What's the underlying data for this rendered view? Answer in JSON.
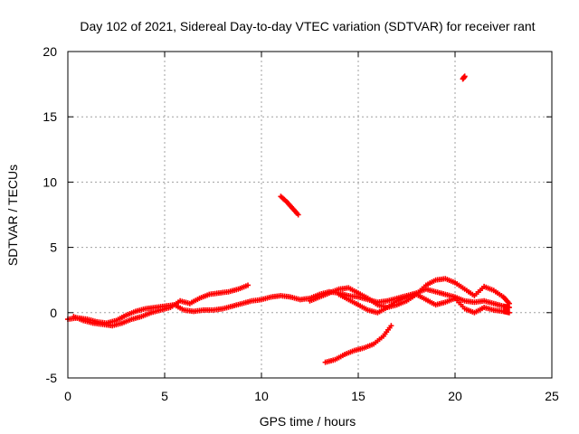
{
  "chart_data": {
    "type": "scatter",
    "title": "Day 102 of 2021, Sidereal Day-to-day VTEC variation (SDTVAR) for receiver rant",
    "xlabel": "GPS time / hours",
    "ylabel": "SDTVAR / TECUs",
    "xlim": [
      0,
      25
    ],
    "ylim": [
      -5,
      20
    ],
    "xticks": [
      0,
      5,
      10,
      15,
      20,
      25
    ],
    "yticks": [
      -5,
      0,
      5,
      10,
      15,
      20
    ],
    "grid": true,
    "marker_color": "#ff0000",
    "series": [
      {
        "name": "track-a",
        "x": [
          0.0,
          0.5,
          1.0,
          1.5,
          2.0,
          2.5,
          3.0,
          3.5,
          4.0,
          4.5,
          5.0,
          5.5,
          6.0,
          6.5,
          7.0,
          7.5,
          8.0,
          8.5,
          9.0,
          9.5,
          10.0,
          10.5,
          11.0,
          11.5,
          12.0,
          12.5,
          13.0,
          13.5,
          14.0,
          14.5,
          15.0,
          15.5,
          16.0,
          16.5,
          17.0,
          17.5,
          18.0,
          18.5,
          19.0,
          19.5,
          20.0,
          20.5,
          21.0,
          21.5,
          22.0,
          22.5,
          22.8
        ],
        "y": [
          -0.5,
          -0.4,
          -0.5,
          -0.7,
          -0.8,
          -0.6,
          -0.2,
          0.1,
          0.3,
          0.4,
          0.5,
          0.6,
          0.2,
          0.1,
          0.2,
          0.2,
          0.3,
          0.5,
          0.7,
          0.9,
          1.0,
          1.2,
          1.3,
          1.2,
          1.0,
          1.1,
          1.4,
          1.6,
          1.5,
          1.3,
          1.2,
          1.0,
          0.8,
          0.9,
          1.1,
          1.3,
          1.5,
          1.8,
          1.6,
          1.4,
          1.2,
          0.9,
          0.8,
          0.9,
          0.7,
          0.5,
          0.4
        ]
      },
      {
        "name": "track-b",
        "x": [
          0.3,
          0.8,
          1.3,
          1.8,
          2.3,
          2.8,
          3.3,
          3.8,
          4.3,
          4.8,
          5.3,
          5.8,
          6.3,
          6.8,
          7.3,
          7.8,
          8.3,
          8.8,
          9.3
        ],
        "y": [
          -0.3,
          -0.6,
          -0.8,
          -0.9,
          -1.0,
          -0.8,
          -0.5,
          -0.3,
          0.0,
          0.2,
          0.4,
          0.9,
          0.7,
          1.1,
          1.4,
          1.5,
          1.6,
          1.8,
          2.1
        ]
      },
      {
        "name": "track-c",
        "x": [
          12.5,
          13.0,
          13.5,
          14.0,
          14.5,
          15.0,
          15.5,
          16.0,
          16.5,
          17.0,
          17.5,
          18.0,
          18.5,
          19.0,
          19.5,
          20.0,
          20.5,
          21.0,
          21.5,
          22.0,
          22.5,
          22.8
        ],
        "y": [
          0.9,
          1.2,
          1.5,
          1.8,
          1.9,
          1.5,
          1.1,
          0.6,
          0.4,
          0.6,
          0.9,
          1.4,
          2.1,
          2.5,
          2.6,
          2.3,
          1.8,
          1.3,
          2.0,
          1.7,
          1.2,
          0.7
        ]
      },
      {
        "name": "track-d",
        "x": [
          14.0,
          14.5,
          15.0,
          15.5,
          16.0,
          16.5,
          17.0,
          17.5,
          18.0,
          18.5,
          19.0,
          19.5,
          20.0,
          20.5,
          21.0,
          21.5,
          22.0,
          22.5,
          22.8
        ],
        "y": [
          1.4,
          1.0,
          0.6,
          0.2,
          0.0,
          0.4,
          0.9,
          1.2,
          1.4,
          1.0,
          0.6,
          0.8,
          1.1,
          0.3,
          0.0,
          0.4,
          0.2,
          0.1,
          0.0
        ]
      },
      {
        "name": "track-e",
        "x": [
          13.3,
          13.8,
          14.3,
          14.8,
          15.3,
          15.8,
          16.3,
          16.7
        ],
        "y": [
          -3.8,
          -3.6,
          -3.2,
          -2.9,
          -2.7,
          -2.4,
          -1.8,
          -1.0
        ]
      },
      {
        "name": "track-f",
        "x": [
          11.0,
          11.3,
          11.6,
          11.9
        ],
        "y": [
          8.9,
          8.5,
          8.0,
          7.5
        ]
      },
      {
        "name": "track-g",
        "x": [
          20.4,
          20.5
        ],
        "y": [
          17.9,
          18.1
        ]
      }
    ]
  }
}
